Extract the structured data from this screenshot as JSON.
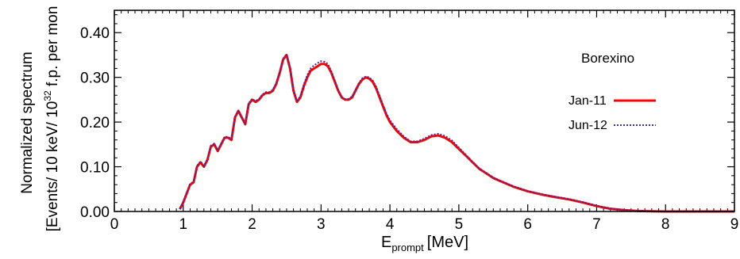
{
  "chart_data": {
    "type": "line",
    "xlabel": "E",
    "xlabel_sub": "prompt",
    "xlabel_unit": "[MeV]",
    "ylabel_line1": "Normalized spectrum",
    "ylabel_line2_pre": "[Events/ 10 keV/ 10",
    "ylabel_line2_sup": "32",
    "ylabel_line2_post": " f.p. per mon",
    "xlim": [
      0,
      9
    ],
    "ylim": [
      0,
      0.45
    ],
    "x_ticks": [
      "0",
      "1",
      "2",
      "3",
      "4",
      "5",
      "6",
      "7",
      "8",
      "9"
    ],
    "y_ticks": [
      "0.00",
      "0.10",
      "0.20",
      "0.30",
      "0.40"
    ],
    "legend_title": "Borexino",
    "legend_position": "right",
    "grid": false,
    "series": [
      {
        "name": "Jan-11",
        "color": "#ff0000",
        "style": "solid",
        "x": [
          0.95,
          1.0,
          1.05,
          1.1,
          1.15,
          1.2,
          1.25,
          1.3,
          1.35,
          1.4,
          1.45,
          1.5,
          1.55,
          1.6,
          1.65,
          1.7,
          1.75,
          1.8,
          1.85,
          1.9,
          1.95,
          2.0,
          2.05,
          2.1,
          2.15,
          2.2,
          2.25,
          2.3,
          2.35,
          2.4,
          2.45,
          2.5,
          2.55,
          2.6,
          2.65,
          2.7,
          2.75,
          2.8,
          2.85,
          2.9,
          2.95,
          3.0,
          3.05,
          3.1,
          3.15,
          3.2,
          3.25,
          3.3,
          3.35,
          3.4,
          3.45,
          3.5,
          3.55,
          3.6,
          3.65,
          3.7,
          3.75,
          3.8,
          3.85,
          3.9,
          3.95,
          4.0,
          4.1,
          4.2,
          4.3,
          4.4,
          4.5,
          4.6,
          4.7,
          4.8,
          4.9,
          5.0,
          5.1,
          5.2,
          5.3,
          5.4,
          5.5,
          5.6,
          5.8,
          6.0,
          6.2,
          6.4,
          6.6,
          6.8,
          7.0,
          7.2,
          7.4,
          7.6,
          7.8,
          8.0,
          8.5,
          9.0
        ],
        "values": [
          0.005,
          0.02,
          0.04,
          0.06,
          0.065,
          0.1,
          0.11,
          0.1,
          0.115,
          0.145,
          0.15,
          0.135,
          0.15,
          0.165,
          0.165,
          0.16,
          0.21,
          0.225,
          0.21,
          0.195,
          0.24,
          0.25,
          0.245,
          0.25,
          0.26,
          0.265,
          0.265,
          0.27,
          0.285,
          0.31,
          0.34,
          0.35,
          0.32,
          0.27,
          0.245,
          0.255,
          0.28,
          0.3,
          0.315,
          0.32,
          0.325,
          0.33,
          0.33,
          0.325,
          0.31,
          0.29,
          0.27,
          0.255,
          0.25,
          0.25,
          0.255,
          0.27,
          0.285,
          0.295,
          0.3,
          0.297,
          0.29,
          0.275,
          0.255,
          0.235,
          0.215,
          0.2,
          0.18,
          0.165,
          0.155,
          0.155,
          0.16,
          0.168,
          0.17,
          0.165,
          0.155,
          0.14,
          0.125,
          0.11,
          0.095,
          0.085,
          0.075,
          0.068,
          0.055,
          0.045,
          0.038,
          0.032,
          0.027,
          0.02,
          0.012,
          0.006,
          0.003,
          0.001,
          0.0005,
          0.0,
          0.0,
          0.0
        ]
      },
      {
        "name": "Jun-12",
        "color": "#3333aa",
        "style": "dotted",
        "x": [
          0.95,
          1.0,
          1.05,
          1.1,
          1.15,
          1.2,
          1.25,
          1.3,
          1.35,
          1.4,
          1.45,
          1.5,
          1.55,
          1.6,
          1.65,
          1.7,
          1.75,
          1.8,
          1.85,
          1.9,
          1.95,
          2.0,
          2.05,
          2.1,
          2.15,
          2.2,
          2.25,
          2.3,
          2.35,
          2.4,
          2.45,
          2.5,
          2.55,
          2.6,
          2.65,
          2.7,
          2.75,
          2.8,
          2.85,
          2.9,
          2.95,
          3.0,
          3.05,
          3.1,
          3.15,
          3.2,
          3.25,
          3.3,
          3.35,
          3.4,
          3.45,
          3.5,
          3.55,
          3.6,
          3.65,
          3.7,
          3.75,
          3.8,
          3.85,
          3.9,
          3.95,
          4.0,
          4.1,
          4.2,
          4.3,
          4.4,
          4.5,
          4.6,
          4.7,
          4.8,
          4.9,
          5.0,
          5.1,
          5.2,
          5.3,
          5.4,
          5.5,
          5.6,
          5.8,
          6.0,
          6.2,
          6.4,
          6.6,
          6.8,
          7.0,
          7.2,
          7.4,
          7.6,
          7.8,
          8.0,
          8.5,
          9.0
        ],
        "values": [
          0.006,
          0.022,
          0.042,
          0.062,
          0.067,
          0.102,
          0.112,
          0.102,
          0.117,
          0.147,
          0.152,
          0.137,
          0.152,
          0.167,
          0.167,
          0.162,
          0.212,
          0.227,
          0.212,
          0.197,
          0.242,
          0.252,
          0.247,
          0.252,
          0.262,
          0.267,
          0.267,
          0.272,
          0.287,
          0.312,
          0.342,
          0.352,
          0.322,
          0.272,
          0.247,
          0.258,
          0.284,
          0.305,
          0.32,
          0.327,
          0.332,
          0.336,
          0.335,
          0.33,
          0.314,
          0.293,
          0.272,
          0.256,
          0.251,
          0.252,
          0.257,
          0.272,
          0.288,
          0.298,
          0.302,
          0.3,
          0.293,
          0.279,
          0.259,
          0.239,
          0.219,
          0.204,
          0.184,
          0.168,
          0.157,
          0.157,
          0.163,
          0.171,
          0.174,
          0.169,
          0.159,
          0.143,
          0.127,
          0.111,
          0.096,
          0.086,
          0.076,
          0.069,
          0.056,
          0.046,
          0.039,
          0.033,
          0.028,
          0.021,
          0.013,
          0.007,
          0.003,
          0.001,
          0.0005,
          0.0,
          0.0,
          0.0
        ]
      }
    ]
  }
}
